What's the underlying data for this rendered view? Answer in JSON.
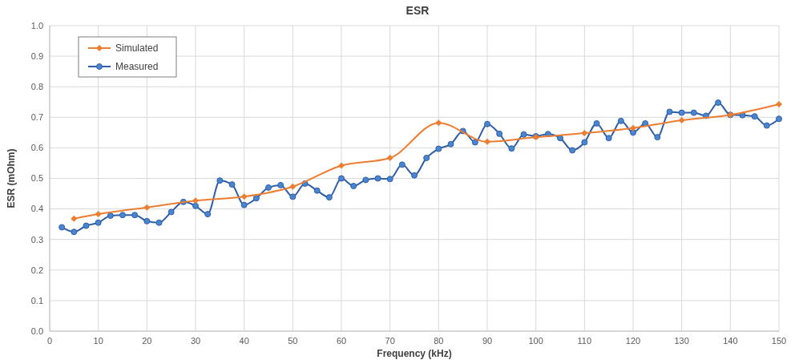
{
  "chart_data": {
    "type": "line",
    "title": "ESR",
    "xlabel": "Frequency (kHz)",
    "ylabel": "ESR (mOhm)",
    "xlim": [
      0,
      150
    ],
    "xticks": [
      0,
      10,
      20,
      30,
      40,
      50,
      60,
      70,
      80,
      90,
      100,
      110,
      120,
      130,
      140,
      150
    ],
    "ylim": [
      0,
      1
    ],
    "yticks": [
      {
        "value": 0,
        "label": "0.0"
      },
      0.1,
      0.2,
      0.3,
      0.4,
      0.5,
      0.6,
      0.7,
      0.8,
      0.9,
      {
        "value": 1,
        "label": "1.0"
      }
    ],
    "grid": true,
    "legend": "top left",
    "series": [
      {
        "name": "Simulated",
        "color": "#ed7d31",
        "marker": "diamond",
        "x": [
          5,
          10,
          20,
          30,
          40,
          50,
          60,
          70,
          80,
          90,
          100,
          110,
          120,
          130,
          140,
          150
        ],
        "values": [
          0.368,
          0.383,
          0.405,
          0.427,
          0.44,
          0.473,
          0.542,
          0.567,
          0.682,
          0.62,
          0.635,
          0.648,
          0.665,
          0.69,
          0.708,
          0.743
        ]
      },
      {
        "name": "Measured",
        "color": "#2f5ea8",
        "marker": "circle",
        "x": [
          2.5,
          5,
          7.5,
          10,
          12.5,
          15,
          17.5,
          20,
          22.5,
          25,
          27.5,
          30,
          32.5,
          35,
          37.5,
          40,
          42.5,
          45,
          47.5,
          50,
          52.5,
          55,
          57.5,
          60,
          62.5,
          65,
          67.5,
          70,
          72.5,
          75,
          77.5,
          80,
          82.5,
          85,
          87.5,
          90,
          92.5,
          95,
          97.5,
          100,
          102.5,
          105,
          107.5,
          110,
          112.5,
          115,
          117.5,
          120,
          122.5,
          125,
          127.5,
          130,
          132.5,
          135,
          137.5,
          140,
          142.5,
          145,
          147.5,
          150
        ],
        "values": [
          0.34,
          0.325,
          0.345,
          0.355,
          0.378,
          0.38,
          0.38,
          0.36,
          0.355,
          0.39,
          0.423,
          0.41,
          0.383,
          0.493,
          0.48,
          0.413,
          0.435,
          0.47,
          0.478,
          0.44,
          0.483,
          0.46,
          0.438,
          0.5,
          0.475,
          0.495,
          0.5,
          0.498,
          0.545,
          0.51,
          0.567,
          0.597,
          0.612,
          0.655,
          0.618,
          0.678,
          0.646,
          0.598,
          0.644,
          0.638,
          0.645,
          0.632,
          0.592,
          0.618,
          0.68,
          0.632,
          0.688,
          0.65,
          0.68,
          0.635,
          0.718,
          0.715,
          0.715,
          0.705,
          0.748,
          0.708,
          0.707,
          0.703,
          0.673,
          0.695
        ]
      }
    ]
  }
}
